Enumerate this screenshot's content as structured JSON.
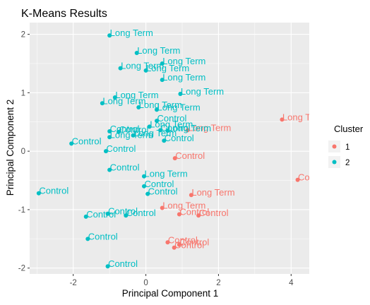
{
  "chart_data": {
    "type": "scatter",
    "title": "K-Means Results",
    "xlabel": "Principal Component 1",
    "ylabel": "Principal Component 2",
    "xlim": [
      -3.2,
      4.5
    ],
    "ylim": [
      -2.1,
      2.2
    ],
    "x_ticks": [
      -2,
      0,
      2,
      4
    ],
    "y_ticks": [
      -2,
      -1,
      0,
      1,
      2
    ],
    "grid": true,
    "panel_background": "#ebebeb",
    "legend": {
      "title": "Cluster",
      "position": "right"
    },
    "series": [
      {
        "name": "1",
        "color": "#F8766D",
        "points": [
          {
            "x": 3.75,
            "y": 0.54,
            "label": "Long Term"
          },
          {
            "x": 4.18,
            "y": -0.49,
            "label": "Control"
          },
          {
            "x": 1.15,
            "y": 0.36,
            "label": "Long Term"
          },
          {
            "x": 0.8,
            "y": -0.12,
            "label": "Control"
          },
          {
            "x": 1.25,
            "y": -0.75,
            "label": "Long Term"
          },
          {
            "x": 0.45,
            "y": -0.97,
            "label": "Long Term"
          },
          {
            "x": 0.92,
            "y": -1.08,
            "label": "Control"
          },
          {
            "x": 1.45,
            "y": -1.1,
            "label": "Control"
          },
          {
            "x": 0.6,
            "y": -1.56,
            "label": "Control"
          },
          {
            "x": 0.78,
            "y": -1.65,
            "label": "Control"
          },
          {
            "x": 0.92,
            "y": -1.6,
            "label": "Control"
          }
        ]
      },
      {
        "name": "2",
        "color": "#00BFC4",
        "points": [
          {
            "x": -1.0,
            "y": 1.98,
            "label": "Long Term"
          },
          {
            "x": -0.25,
            "y": 1.68,
            "label": "Long Term"
          },
          {
            "x": 0.45,
            "y": 1.5,
            "label": "Long Term"
          },
          {
            "x": -0.7,
            "y": 1.42,
            "label": "Long Term"
          },
          {
            "x": 0.0,
            "y": 1.38,
            "label": "Long Term"
          },
          {
            "x": 0.45,
            "y": 1.22,
            "label": "Long Term"
          },
          {
            "x": 0.95,
            "y": 0.98,
            "label": "Long Term"
          },
          {
            "x": -0.85,
            "y": 0.92,
            "label": "Long Term"
          },
          {
            "x": -1.2,
            "y": 0.82,
            "label": "Long Term"
          },
          {
            "x": -0.2,
            "y": 0.75,
            "label": "Long Term"
          },
          {
            "x": 0.3,
            "y": 0.71,
            "label": "Long Term"
          },
          {
            "x": 0.3,
            "y": 0.52,
            "label": "Control"
          },
          {
            "x": -1.0,
            "y": 0.34,
            "label": "Control"
          },
          {
            "x": -0.75,
            "y": 0.33,
            "label": "Control"
          },
          {
            "x": 0.1,
            "y": 0.42,
            "label": "Long Term"
          },
          {
            "x": 0.4,
            "y": 0.36,
            "label": "Control"
          },
          {
            "x": 0.6,
            "y": 0.35,
            "label": "Long Term"
          },
          {
            "x": -1.0,
            "y": 0.24,
            "label": "Long Term"
          },
          {
            "x": -0.35,
            "y": 0.27,
            "label": "Long Term"
          },
          {
            "x": 0.5,
            "y": 0.18,
            "label": "Control"
          },
          {
            "x": -2.05,
            "y": 0.13,
            "label": "Control"
          },
          {
            "x": -1.1,
            "y": 0.0,
            "label": "Control"
          },
          {
            "x": -1.0,
            "y": -0.32,
            "label": "Control"
          },
          {
            "x": -0.05,
            "y": -0.43,
            "label": "Long Term"
          },
          {
            "x": -0.05,
            "y": -0.6,
            "label": "Control"
          },
          {
            "x": 0.05,
            "y": -0.73,
            "label": "Control"
          },
          {
            "x": -2.95,
            "y": -0.72,
            "label": "Control"
          },
          {
            "x": -1.05,
            "y": -1.07,
            "label": "Control"
          },
          {
            "x": -0.55,
            "y": -1.1,
            "label": "Control"
          },
          {
            "x": -1.65,
            "y": -1.12,
            "label": "Control"
          },
          {
            "x": -1.6,
            "y": -1.5,
            "label": "Control"
          },
          {
            "x": -1.05,
            "y": -1.97,
            "label": "Control"
          }
        ]
      }
    ]
  }
}
